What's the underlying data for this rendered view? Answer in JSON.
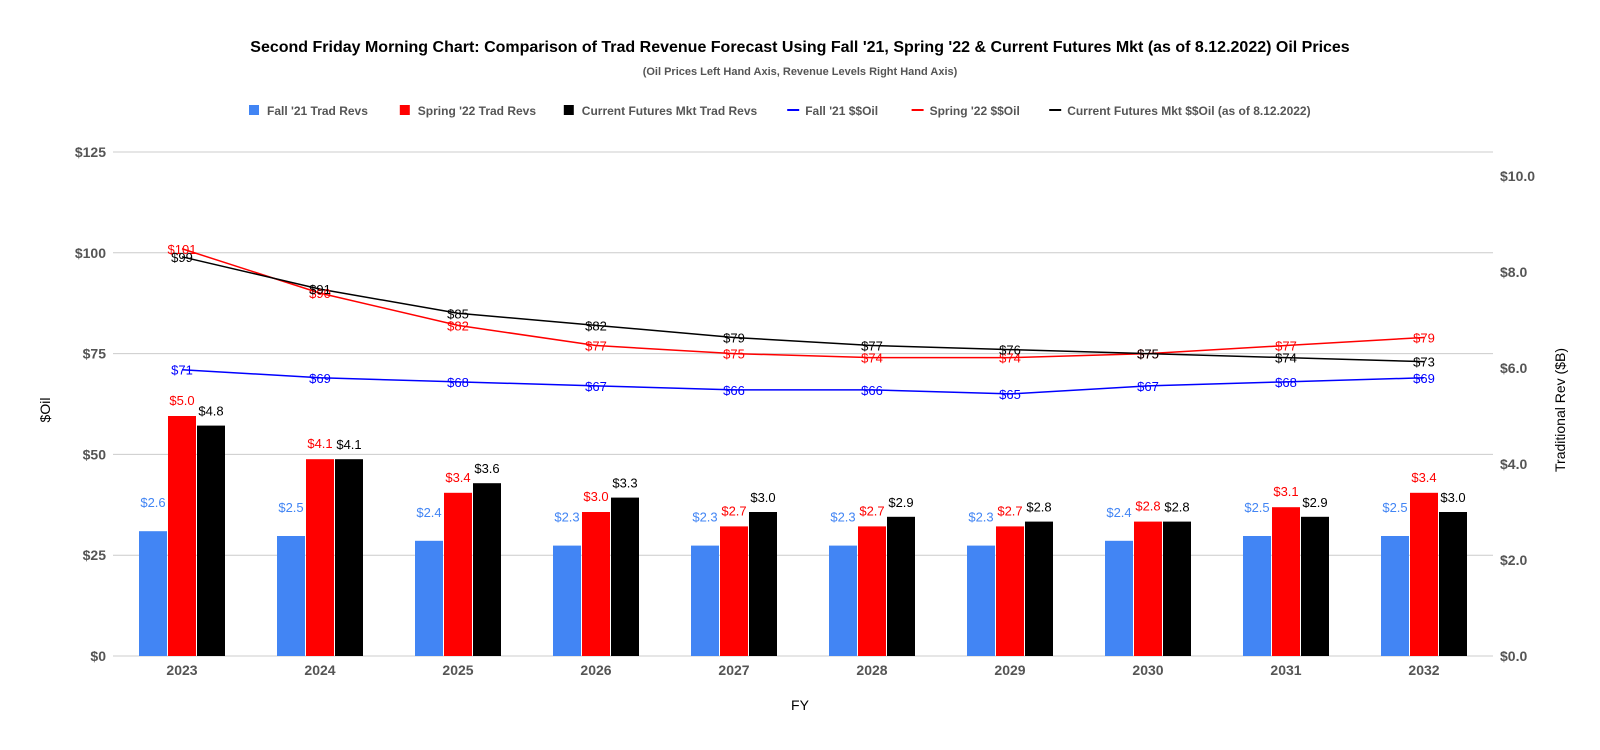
{
  "chart_data": {
    "type": "bar",
    "title": "Second Friday Morning Chart: Comparison of Trad Revenue Forecast Using Fall '21, Spring '22 & Current Futures Mkt (as of 8.12.2022) Oil Prices",
    "subtitle": "(Oil Prices Left Hand Axis, Revenue Levels Right Hand Axis)",
    "xlabel": "FY",
    "ylabel_left": "$Oil",
    "ylabel_right": "Traditional Rev ($B)",
    "categories": [
      "2023",
      "2024",
      "2025",
      "2026",
      "2027",
      "2028",
      "2029",
      "2030",
      "2031",
      "2032"
    ],
    "ylim_left": [
      0,
      125
    ],
    "yticks_left": [
      "$0",
      "$25",
      "$50",
      "$75",
      "$100",
      "$125"
    ],
    "ylim_right": [
      0,
      10
    ],
    "yticks_right": [
      "$0.0",
      "$2.0",
      "$4.0",
      "$6.0",
      "$8.0",
      "$10.0"
    ],
    "grid": true,
    "legend_position": "top",
    "bar_series": [
      {
        "name": "Fall '21 Trad Revs",
        "color": "#4285f4",
        "label_color": "#4285f4",
        "values": [
          2.6,
          2.5,
          2.4,
          2.3,
          2.3,
          2.3,
          2.3,
          2.4,
          2.5,
          2.5
        ],
        "labels": [
          "$2.6",
          "$2.5",
          "$2.4",
          "$2.3",
          "$2.3",
          "$2.3",
          "$2.3",
          "$2.4",
          "$2.5",
          "$2.5"
        ]
      },
      {
        "name": "Spring '22 Trad Revs",
        "color": "#ff0000",
        "label_color": "#ff0000",
        "values": [
          5.0,
          4.1,
          3.4,
          3.0,
          2.7,
          2.7,
          2.7,
          2.8,
          3.1,
          3.4
        ],
        "labels": [
          "$5.0",
          "$4.1",
          "$3.4",
          "$3.0",
          "$2.7",
          "$2.7",
          "$2.7",
          "$2.8",
          "$3.1",
          "$3.4"
        ]
      },
      {
        "name": "Current Futures Mkt Trad Revs",
        "color": "#000000",
        "label_color": "#000000",
        "values": [
          4.8,
          4.1,
          3.6,
          3.3,
          3.0,
          2.9,
          2.8,
          2.8,
          2.9,
          3.0
        ],
        "labels": [
          "$4.8",
          "$4.1",
          "$3.6",
          "$3.3",
          "$3.0",
          "$2.9",
          "$2.8",
          "$2.8",
          "$2.9",
          "$3.0"
        ]
      }
    ],
    "line_series": [
      {
        "name": "Fall '21 $$Oil",
        "color": "#0000ff",
        "label_color": "#0000ff",
        "values": [
          71,
          69,
          68,
          67,
          66,
          66,
          65,
          67,
          68,
          69
        ],
        "labels": [
          "$71",
          "$69",
          "$68",
          "$67",
          "$66",
          "$66",
          "$65",
          "$67",
          "$68",
          "$69"
        ]
      },
      {
        "name": "Spring '22 $$Oil",
        "color": "#ff0000",
        "label_color": "#ff0000",
        "values": [
          101,
          90,
          82,
          77,
          75,
          74,
          74,
          75,
          77,
          79
        ],
        "labels": [
          "$101",
          "$90",
          "$82",
          "$77",
          "$75",
          "$74",
          "$74",
          "$75",
          "$77",
          "$79"
        ]
      },
      {
        "name": "Current Futures Mkt $$Oil (as of 8.12.2022)",
        "color": "#000000",
        "label_color": "#000000",
        "values": [
          99,
          91,
          85,
          82,
          79,
          77,
          76,
          75,
          74,
          73
        ],
        "labels": [
          "$99",
          "$91",
          "$85",
          "$82",
          "$79",
          "$77",
          "$76",
          "$75",
          "$74",
          "$73"
        ]
      }
    ]
  }
}
